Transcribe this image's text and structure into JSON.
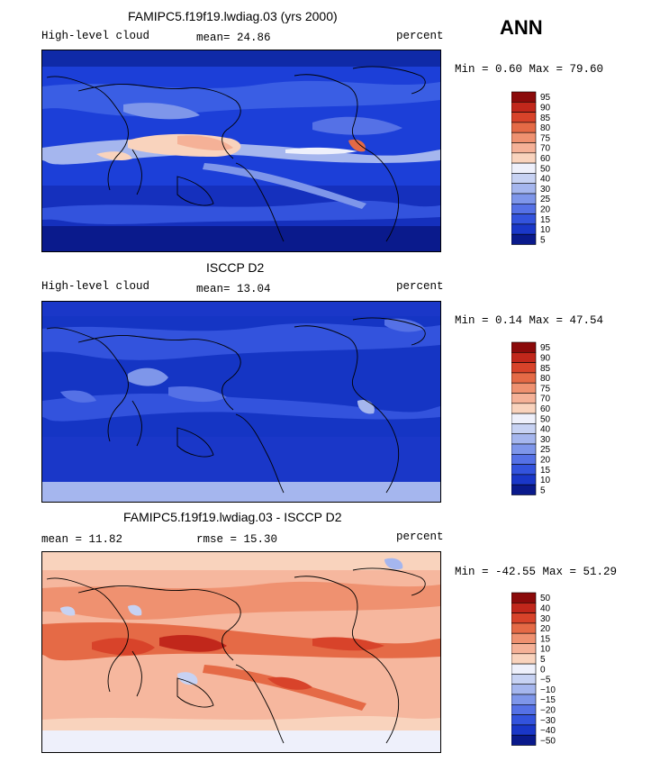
{
  "season": "ANN",
  "panels": [
    {
      "id": "model",
      "title": "FAMIPC5.f19f19.lwdiag.03 (yrs 2000)",
      "left_label": "High-level cloud",
      "center_label": "mean=  24.86",
      "right_label": "percent",
      "minmax": "Min =   0.60 Max =  79.60",
      "levels": [
        "95",
        "90",
        "85",
        "80",
        "75",
        "70",
        "60",
        "50",
        "40",
        "30",
        "25",
        "20",
        "15",
        "10",
        "5"
      ],
      "palette": "seq",
      "base_color": "#1c3fd8"
    },
    {
      "id": "obs",
      "title": "ISCCP D2",
      "left_label": "High-level cloud",
      "center_label": "mean=  13.04",
      "right_label": "percent",
      "minmax": "Min =   0.14 Max =  47.54",
      "levels": [
        "95",
        "90",
        "85",
        "80",
        "75",
        "70",
        "60",
        "50",
        "40",
        "30",
        "25",
        "20",
        "15",
        "10",
        "5"
      ],
      "palette": "seq",
      "base_color": "#1535c4"
    },
    {
      "id": "diff",
      "title": "FAMIPC5.f19f19.lwdiag.03 - ISCCP D2",
      "left_label": "mean =   11.82",
      "center_label": "rmse =   15.30",
      "right_label": "percent",
      "minmax": "Min = -42.55 Max =  51.29",
      "levels": [
        "50",
        "40",
        "30",
        "20",
        "15",
        "10",
        "5",
        "0",
        "−5",
        "−10",
        "−15",
        "−20",
        "−30",
        "−40",
        "−50"
      ],
      "palette": "div",
      "base_color": "#f6b79e"
    }
  ],
  "colors": {
    "seq": [
      "#8b0a0a",
      "#c1271b",
      "#d8432a",
      "#e56a46",
      "#ef9170",
      "#f5b197",
      "#f9d3bd",
      "#eef0fb",
      "#c7d2f3",
      "#a5b6ee",
      "#7e96ea",
      "#5571e6",
      "#3353dd",
      "#1a37c8",
      "#0a1a8c"
    ],
    "div": [
      "#8b0a0a",
      "#c1271b",
      "#d8432a",
      "#e56a46",
      "#ef9170",
      "#f5b197",
      "#f9d3bd",
      "#eef0fb",
      "#c7d2f3",
      "#a5b6ee",
      "#7e96ea",
      "#5571e6",
      "#3353dd",
      "#1a37c8",
      "#0a1a8c"
    ]
  }
}
